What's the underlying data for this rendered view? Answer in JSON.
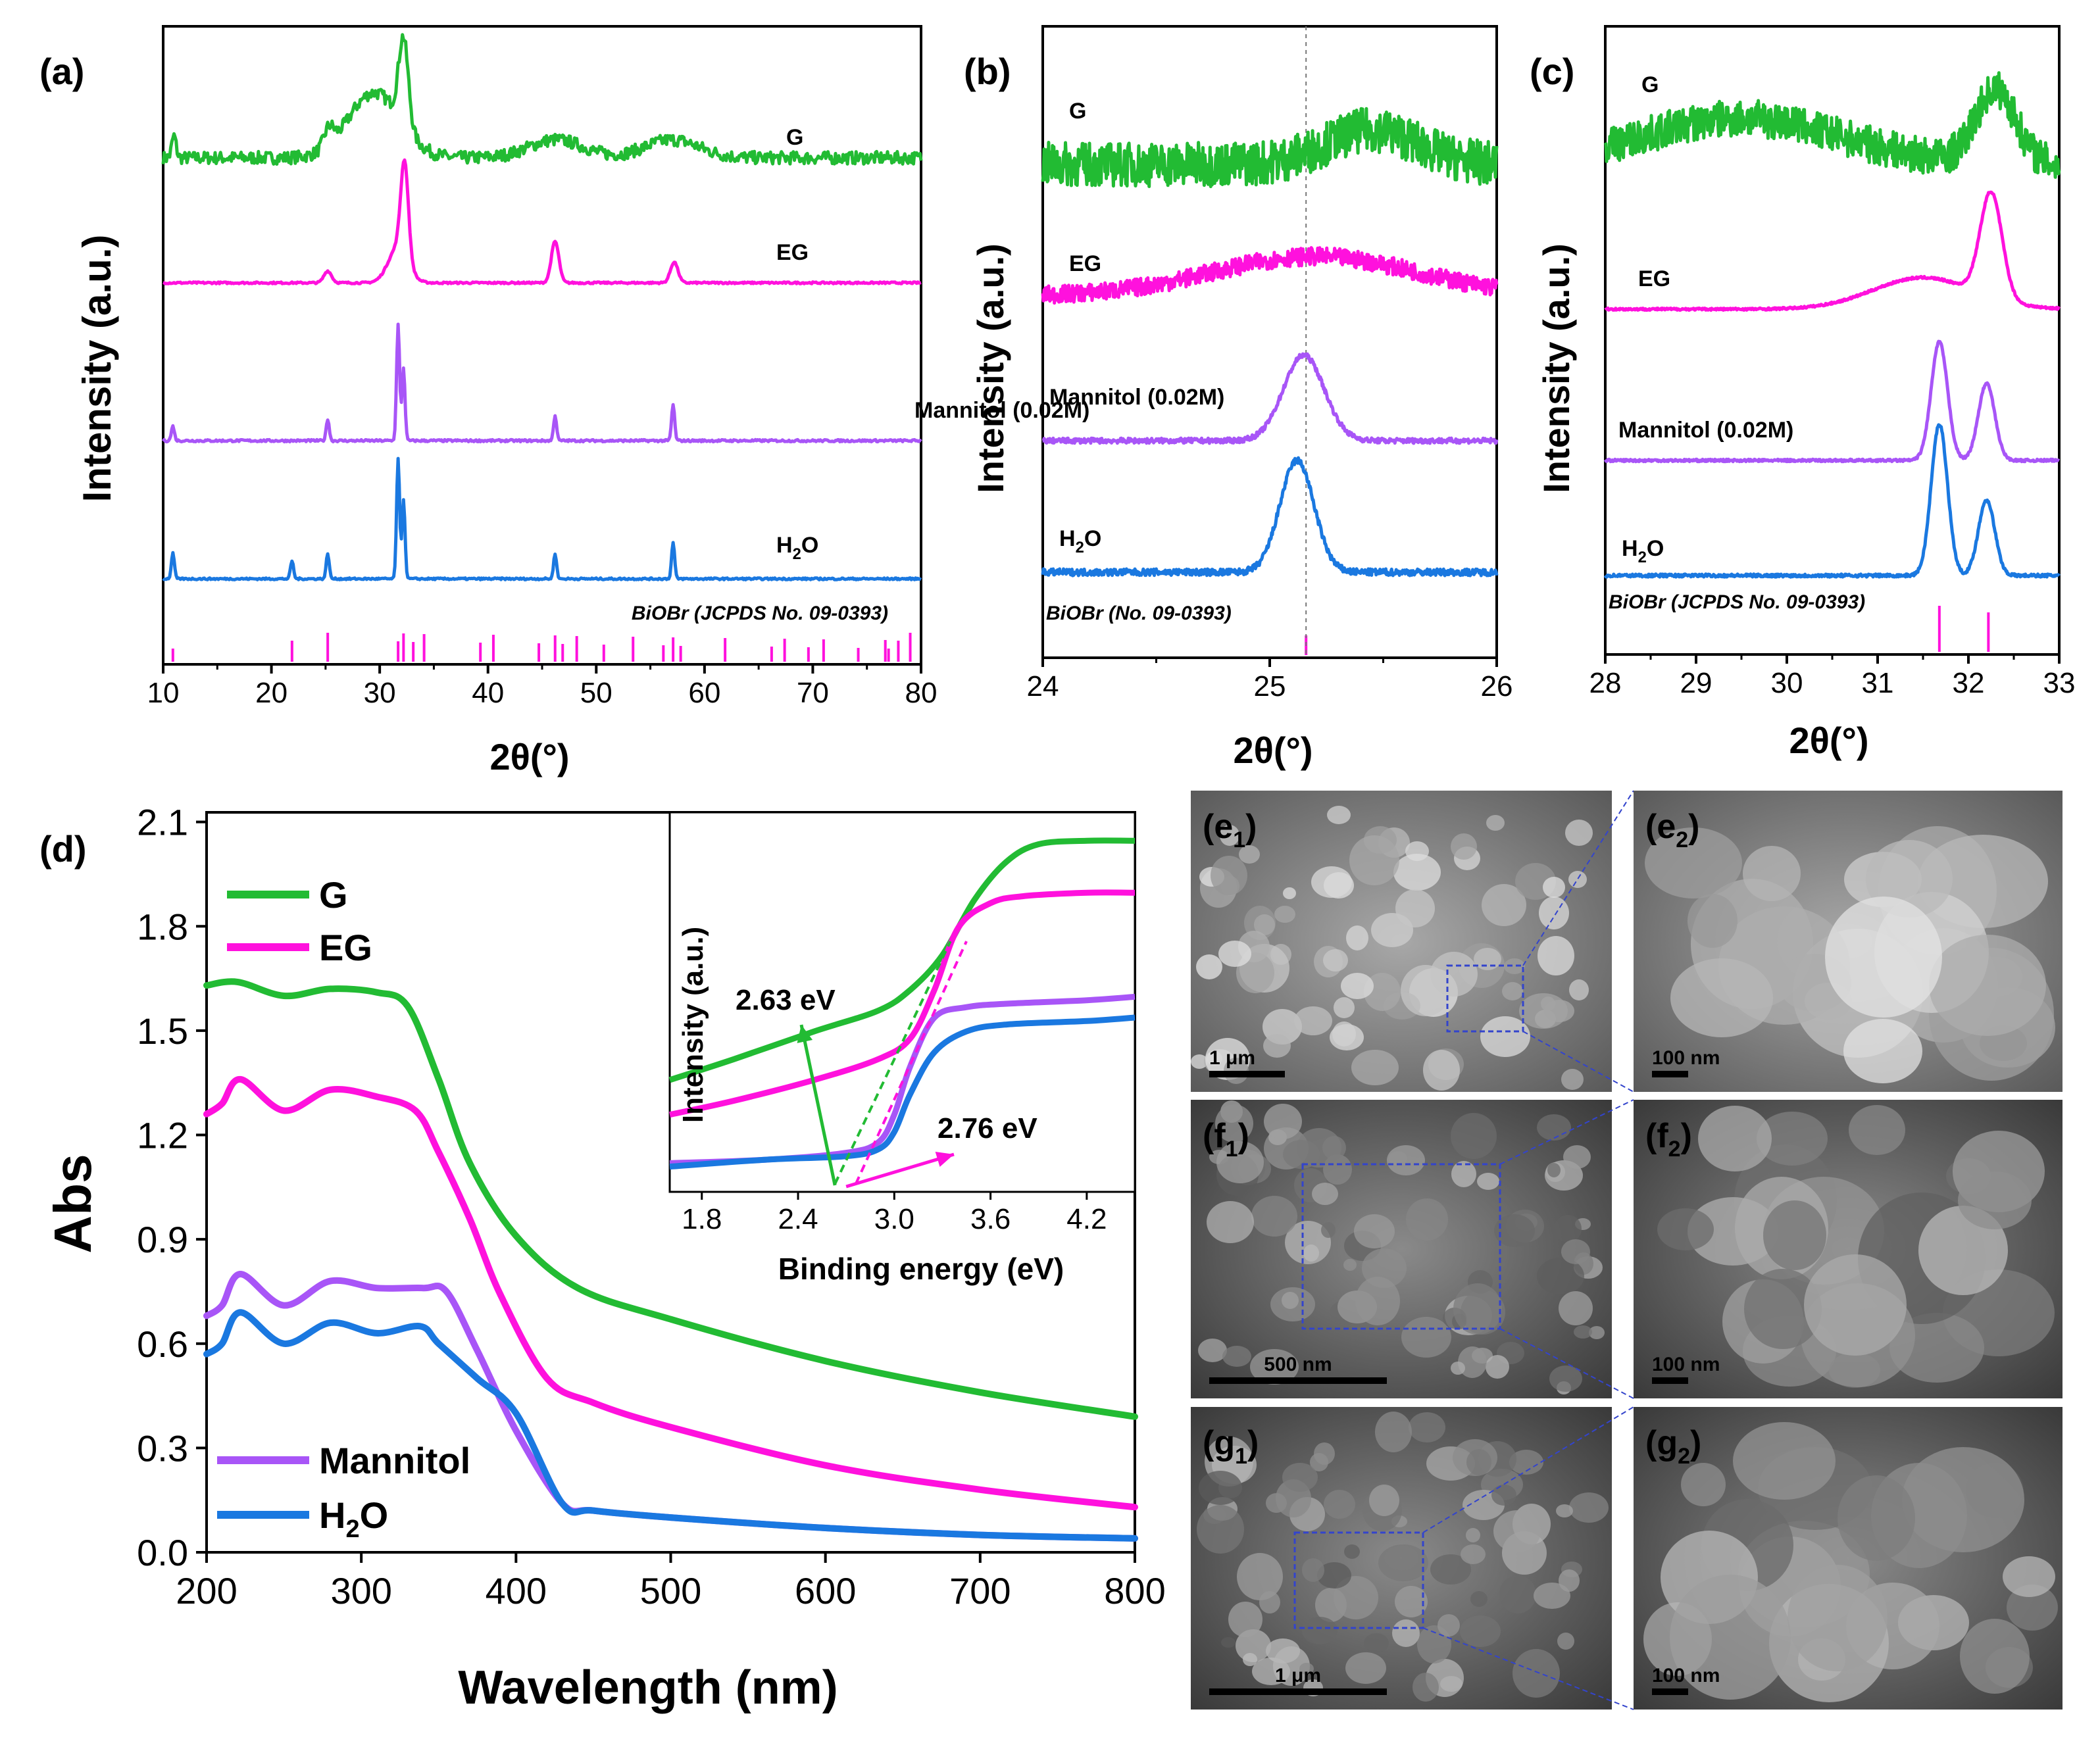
{
  "panel_labels": {
    "a": "(a)",
    "b": "(b)",
    "c": "(c)",
    "d": "(d)"
  },
  "colors": {
    "G": "#22bb33",
    "EG": "#ff11dd",
    "Mannitol": "#a855f7",
    "H2O": "#1a78e0",
    "ref": "#ff11dd",
    "sem_dark": "#3a3a3a",
    "sem_light": "#bdbdbd",
    "sem_box": "#3344cc"
  },
  "chart_data": [
    {
      "id": "a",
      "type": "line",
      "title": "(a)",
      "xlabel": "2θ(°)",
      "ylabel": "Intensity (a.u.)",
      "xlim": [
        10,
        80
      ],
      "xticks": [
        10,
        20,
        30,
        40,
        50,
        60,
        70,
        80
      ],
      "reference_label": "BiOBr (JCPDS No. 09-0393)",
      "reference_peaks": [
        10.9,
        21.9,
        25.2,
        31.7,
        32.2,
        33.1,
        34.1,
        39.3,
        40.5,
        44.7,
        46.2,
        46.9,
        48.2,
        50.7,
        53.4,
        56.2,
        57.1,
        57.8,
        61.9,
        66.2,
        67.4,
        69.6,
        71.0,
        74.2,
        76.7,
        77.0,
        77.9,
        79.0
      ],
      "series": [
        {
          "name": "G",
          "label": "G",
          "key": "G",
          "baseline": 0.9,
          "peaks": [
            [
              11,
              0.6
            ],
            [
              25.3,
              0.5
            ],
            [
              29.5,
              1.8
            ],
            [
              32.2,
              2.4
            ],
            [
              46.3,
              0.5
            ],
            [
              57,
              0.5
            ]
          ]
        },
        {
          "name": "EG",
          "label": "EG",
          "key": "EG",
          "baseline": 0.65,
          "peaks": [
            [
              25.2,
              0.4
            ],
            [
              31.7,
              1.2
            ],
            [
              32.3,
              3.2
            ],
            [
              46.2,
              1.4
            ],
            [
              57.2,
              0.7
            ]
          ]
        },
        {
          "name": "Mannitol (0.02M)",
          "label": "Mannitol (0.02M)",
          "key": "Mannitol",
          "baseline": 0.4,
          "peaks": [
            [
              10.9,
              0.4
            ],
            [
              25.2,
              0.6
            ],
            [
              31.7,
              3.2
            ],
            [
              32.2,
              2.0
            ],
            [
              46.2,
              0.7
            ],
            [
              57.1,
              1.0
            ]
          ]
        },
        {
          "name": "H2O",
          "label": "H",
          "label_sub": "2",
          "label_rest": "O",
          "key": "H2O",
          "baseline": 0.15,
          "peaks": [
            [
              10.9,
              0.7
            ],
            [
              21.9,
              0.5
            ],
            [
              25.2,
              0.7
            ],
            [
              31.7,
              3.3
            ],
            [
              32.2,
              2.2
            ],
            [
              46.2,
              0.7
            ],
            [
              57.1,
              1.0
            ]
          ]
        }
      ]
    },
    {
      "id": "b",
      "type": "line",
      "title": "(b)",
      "xlabel": "2θ(°)",
      "ylabel": "Intensity (a.u.)",
      "xlim": [
        24,
        26
      ],
      "xticks": [
        24,
        25,
        26
      ],
      "reference_label": "BiOBr (No. 09-0393)",
      "reference_peaks": [
        25.16
      ],
      "dashed_line_x": 25.16,
      "series": [
        {
          "name": "G",
          "label": "G",
          "key": "G",
          "peaks": [
            [
              25.45,
              0.7
            ]
          ]
        },
        {
          "name": "EG",
          "label": "EG",
          "key": "EG",
          "peaks": [
            [
              25.2,
              1.0
            ]
          ]
        },
        {
          "name": "Mannitol (0.02M)",
          "label": "Mannitol (0.02M)",
          "key": "Mannitol",
          "peaks": [
            [
              25.15,
              1.0
            ]
          ]
        },
        {
          "name": "H2O",
          "label": "H",
          "label_sub": "2",
          "label_rest": "O",
          "key": "H2O",
          "peaks": [
            [
              25.12,
              1.0
            ]
          ]
        }
      ]
    },
    {
      "id": "c",
      "type": "line",
      "title": "(c)",
      "xlabel": "2θ(°)",
      "ylabel": "Intensity (a.u.)",
      "xlim": [
        28,
        33
      ],
      "xticks": [
        28,
        29,
        30,
        31,
        32,
        33
      ],
      "reference_label": "BiOBr (JCPDS No. 09-0393)",
      "reference_peaks": [
        31.68,
        32.22
      ],
      "series": [
        {
          "name": "G",
          "label": "G",
          "key": "G",
          "peaks": [
            [
              29.5,
              1.0
            ],
            [
              32.3,
              1.6
            ]
          ]
        },
        {
          "name": "EG",
          "label": "EG",
          "key": "EG",
          "peaks": [
            [
              31.5,
              0.6
            ],
            [
              32.25,
              2.0
            ]
          ]
        },
        {
          "name": "Mannitol (0.02M)",
          "label": "Mannitol (0.02M)",
          "key": "Mannitol",
          "peaks": [
            [
              31.68,
              2.0
            ],
            [
              32.2,
              1.3
            ]
          ]
        },
        {
          "name": "H2O",
          "label": "H",
          "label_sub": "2",
          "label_rest": "O",
          "key": "H2O",
          "peaks": [
            [
              31.68,
              2.0
            ],
            [
              32.2,
              1.0
            ]
          ]
        }
      ]
    },
    {
      "id": "d",
      "type": "line",
      "title": "(d)",
      "xlabel": "Wavelength (nm)",
      "ylabel": "Abs",
      "xlim": [
        200,
        800
      ],
      "ylim": [
        0.0,
        2.1
      ],
      "xticks": [
        200,
        300,
        400,
        500,
        600,
        700,
        800
      ],
      "yticks": [
        "0.0",
        "0.3",
        "0.6",
        "0.9",
        "1.2",
        "1.5",
        "1.8",
        "2.1"
      ],
      "series": [
        {
          "name": "G",
          "legend": "G",
          "key": "G",
          "x": [
            200,
            220,
            250,
            280,
            310,
            330,
            350,
            370,
            400,
            440,
            500,
            600,
            700,
            800
          ],
          "y": [
            1.63,
            1.64,
            1.6,
            1.62,
            1.61,
            1.57,
            1.36,
            1.12,
            0.91,
            0.76,
            0.67,
            0.55,
            0.46,
            0.39
          ]
        },
        {
          "name": "EG",
          "legend": "EG",
          "key": "EG",
          "x": [
            200,
            210,
            222,
            250,
            280,
            310,
            335,
            350,
            370,
            390,
            420,
            450,
            500,
            600,
            700,
            800
          ],
          "y": [
            1.26,
            1.29,
            1.36,
            1.27,
            1.33,
            1.31,
            1.27,
            1.15,
            0.96,
            0.74,
            0.5,
            0.43,
            0.36,
            0.25,
            0.18,
            0.13
          ]
        },
        {
          "name": "Mannitol",
          "legend": "Mannitol",
          "key": "Mannitol",
          "x": [
            200,
            210,
            222,
            250,
            280,
            310,
            340,
            355,
            375,
            400,
            430,
            450,
            500,
            600,
            700,
            800
          ],
          "y": [
            0.68,
            0.71,
            0.8,
            0.71,
            0.78,
            0.76,
            0.76,
            0.75,
            0.58,
            0.35,
            0.14,
            0.12,
            0.1,
            0.07,
            0.05,
            0.04
          ]
        },
        {
          "name": "H2O",
          "legend": "H",
          "legend_sub": "2",
          "legend_rest": "O",
          "key": "H2O",
          "x": [
            200,
            210,
            222,
            250,
            280,
            310,
            338,
            350,
            375,
            400,
            430,
            450,
            500,
            600,
            700,
            800
          ],
          "y": [
            0.57,
            0.6,
            0.69,
            0.6,
            0.66,
            0.63,
            0.65,
            0.6,
            0.5,
            0.4,
            0.14,
            0.12,
            0.1,
            0.07,
            0.05,
            0.04
          ]
        }
      ],
      "inset": {
        "xlabel": "Binding energy (eV)",
        "ylabel": "Intensity (a.u.)",
        "xlim": [
          1.6,
          4.5
        ],
        "xticks": [
          "1.8",
          "2.4",
          "3.0",
          "3.6",
          "4.2"
        ],
        "annotations": [
          "2.63 eV",
          "2.76 eV"
        ],
        "band_gaps_eV": [
          2.63,
          2.76
        ],
        "series": [
          {
            "key": "G",
            "x": [
              1.6,
              2.0,
              2.5,
              2.9,
              3.1,
              3.3,
              3.5,
              3.7,
              3.9,
              4.2,
              4.5
            ],
            "y": [
              0.3,
              0.36,
              0.44,
              0.5,
              0.56,
              0.66,
              0.82,
              0.93,
              0.98,
              0.99,
              0.99
            ]
          },
          {
            "key": "EG",
            "x": [
              1.6,
              2.0,
              2.5,
              2.9,
              3.1,
              3.25,
              3.4,
              3.6,
              3.8,
              4.2,
              4.5
            ],
            "y": [
              0.2,
              0.24,
              0.3,
              0.36,
              0.42,
              0.56,
              0.74,
              0.81,
              0.83,
              0.84,
              0.84
            ]
          },
          {
            "key": "Mannitol",
            "x": [
              1.6,
              2.2,
              2.7,
              2.9,
              3.0,
              3.1,
              3.25,
              3.45,
              3.7,
              4.2,
              4.5
            ],
            "y": [
              0.06,
              0.07,
              0.09,
              0.12,
              0.2,
              0.34,
              0.48,
              0.51,
              0.52,
              0.53,
              0.54
            ]
          },
          {
            "key": "H2O",
            "x": [
              1.6,
              2.2,
              2.7,
              2.9,
              3.0,
              3.1,
              3.25,
              3.45,
              3.7,
              4.2,
              4.5
            ],
            "y": [
              0.05,
              0.07,
              0.08,
              0.1,
              0.15,
              0.26,
              0.38,
              0.44,
              0.46,
              0.47,
              0.48
            ]
          }
        ]
      }
    }
  ],
  "sem_panels": [
    {
      "id": "e1",
      "label": "e",
      "sub": "1",
      "scale": "1 μm",
      "tone": "light",
      "zoom_source": true
    },
    {
      "id": "e2",
      "label": "e",
      "sub": "2",
      "scale": "100 nm",
      "tone": "light"
    },
    {
      "id": "f1",
      "label": "f",
      "sub": "1",
      "scale": "500 nm",
      "tone": "dark",
      "zoom_source": true
    },
    {
      "id": "f2",
      "label": "f",
      "sub": "2",
      "scale": "100 nm",
      "tone": "dark"
    },
    {
      "id": "g1",
      "label": "g",
      "sub": "1",
      "scale": "1 μm",
      "tone": "dark",
      "zoom_source": true
    },
    {
      "id": "g2",
      "label": "g",
      "sub": "2",
      "scale": "100 nm",
      "tone": "dark"
    }
  ]
}
